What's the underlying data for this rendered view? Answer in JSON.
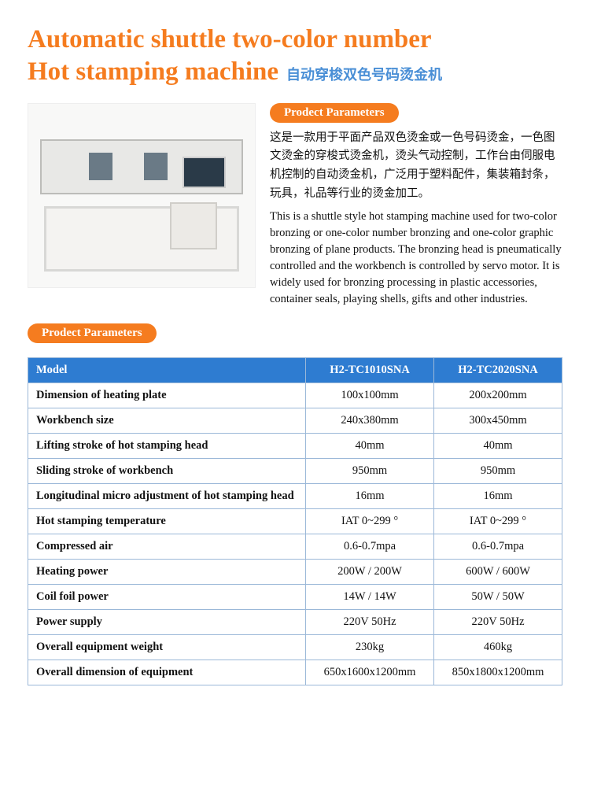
{
  "title": {
    "en_line1": "Automatic shuttle two-color number",
    "en_line2": "Hot stamping machine",
    "cn": "自动穿梭双色号码烫金机"
  },
  "colors": {
    "accent": "#f57c1f",
    "subtitle": "#4a8fd6",
    "table_header_bg": "#2e7cd1",
    "table_border": "#9bb8d8",
    "table_header_text": "#ffffff"
  },
  "intro": {
    "pill": "Prodect Parameters",
    "cn": "这是一款用于平面产品双色烫金或一色号码烫金，一色图文烫金的穿梭式烫金机，烫头气动控制，工作台由伺服电机控制的自动烫金机，广泛用于塑料配件，集装箱封条，玩具，礼品等行业的烫金加工。",
    "en": "This is a shuttle style hot stamping machine used for two-color bronzing or one-color number bronzing and one-color graphic bronzing of plane products. The bronzing head is pneumatically controlled and the workbench is controlled by servo motor. It is widely used for bronzing processing in plastic accessories, container seals, playing shells, gifts and other industries."
  },
  "param_header": "Prodect Parameters",
  "table": {
    "headers": [
      "Model",
      "H2-TC1010SNA",
      "H2-TC2020SNA"
    ],
    "rows": [
      [
        "Dimension of heating plate",
        "100x100mm",
        "200x200mm"
      ],
      [
        "Workbench size",
        "240x380mm",
        "300x450mm"
      ],
      [
        "Lifting stroke of hot stamping head",
        "40mm",
        "40mm"
      ],
      [
        "Sliding stroke of workbench",
        "950mm",
        "950mm"
      ],
      [
        "Longitudinal micro adjustment of hot stamping head",
        "16mm",
        "16mm"
      ],
      [
        "Hot stamping temperature",
        "IAT 0~299 °",
        "IAT 0~299 °"
      ],
      [
        "Compressed air",
        "0.6-0.7mpa",
        "0.6-0.7mpa"
      ],
      [
        "Heating power",
        "200W / 200W",
        "600W / 600W"
      ],
      [
        "Coil foil power",
        "14W / 14W",
        "50W / 50W"
      ],
      [
        "Power supply",
        "220V 50Hz",
        "220V 50Hz"
      ],
      [
        "Overall equipment weight",
        "230kg",
        "460kg"
      ],
      [
        "Overall dimension of equipment",
        "650x1600x1200mm",
        "850x1800x1200mm"
      ]
    ]
  }
}
